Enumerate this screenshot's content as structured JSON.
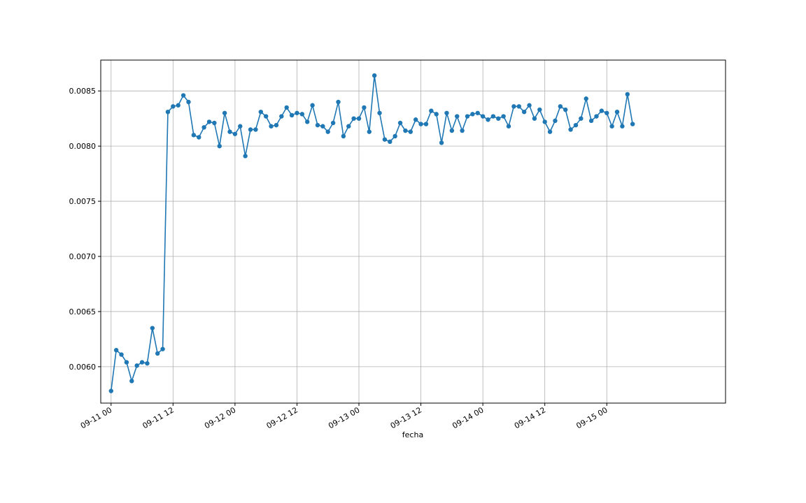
{
  "chart_data": {
    "type": "line",
    "title": "",
    "xlabel": "fecha",
    "ylabel": "",
    "grid": true,
    "marker": "circle",
    "colors": {
      "series": "#1f77b4",
      "grid": "#b0b0b0",
      "axes": "#000000"
    },
    "xlim": [
      "2019-09-10 22:00",
      "2019-09-15 23:00"
    ],
    "ylim": [
      0.00567,
      0.00878
    ],
    "x_ticks": [
      {
        "value": "2019-09-11 00:00",
        "label": "09-11 00"
      },
      {
        "value": "2019-09-11 12:00",
        "label": "09-11 12"
      },
      {
        "value": "2019-09-12 00:00",
        "label": "09-12 00"
      },
      {
        "value": "2019-09-12 12:00",
        "label": "09-12 12"
      },
      {
        "value": "2019-09-13 00:00",
        "label": "09-13 00"
      },
      {
        "value": "2019-09-13 12:00",
        "label": "09-13 12"
      },
      {
        "value": "2019-09-14 00:00",
        "label": "09-14 00"
      },
      {
        "value": "2019-09-14 12:00",
        "label": "09-14 12"
      },
      {
        "value": "2019-09-15 00:00",
        "label": "09-15 00"
      }
    ],
    "y_ticks": [
      {
        "value": 0.006,
        "label": "0.0060"
      },
      {
        "value": 0.0065,
        "label": "0.0065"
      },
      {
        "value": 0.007,
        "label": "0.0070"
      },
      {
        "value": 0.0075,
        "label": "0.0075"
      },
      {
        "value": 0.008,
        "label": "0.0080"
      },
      {
        "value": 0.0085,
        "label": "0.0085"
      }
    ],
    "series": [
      {
        "start": "2019-09-11 00:00",
        "step_hours": 1,
        "values": [
          0.00578,
          0.00615,
          0.00611,
          0.00604,
          0.00587,
          0.00601,
          0.00604,
          0.00603,
          0.00635,
          0.00612,
          0.00616,
          0.00831,
          0.00836,
          0.00837,
          0.00846,
          0.0084,
          0.0081,
          0.00808,
          0.00817,
          0.00822,
          0.00821,
          0.008,
          0.0083,
          0.00813,
          0.00811,
          0.00818,
          0.00791,
          0.00815,
          0.00815,
          0.00831,
          0.00827,
          0.00818,
          0.00819,
          0.00827,
          0.00835,
          0.00828,
          0.0083,
          0.00829,
          0.00822,
          0.00837,
          0.00819,
          0.00818,
          0.00813,
          0.00821,
          0.0084,
          0.00809,
          0.00818,
          0.00825,
          0.00825,
          0.00835,
          0.00813,
          0.00864,
          0.0083,
          0.00806,
          0.00804,
          0.00809,
          0.00821,
          0.00814,
          0.00813,
          0.00824,
          0.0082,
          0.0082,
          0.00832,
          0.00829,
          0.00803,
          0.0083,
          0.00814,
          0.00827,
          0.00814,
          0.00827,
          0.00829,
          0.0083,
          0.00827,
          0.00824,
          0.00827,
          0.00825,
          0.00827,
          0.00818,
          0.00836,
          0.00836,
          0.00831,
          0.00837,
          0.00825,
          0.00833,
          0.00822,
          0.00813,
          0.00823,
          0.00836,
          0.00833,
          0.00815,
          0.00819,
          0.00825,
          0.00843,
          0.00823,
          0.00827,
          0.00832,
          0.0083,
          0.00818,
          0.00831,
          0.00818,
          0.00847,
          0.0082
        ]
      }
    ]
  }
}
